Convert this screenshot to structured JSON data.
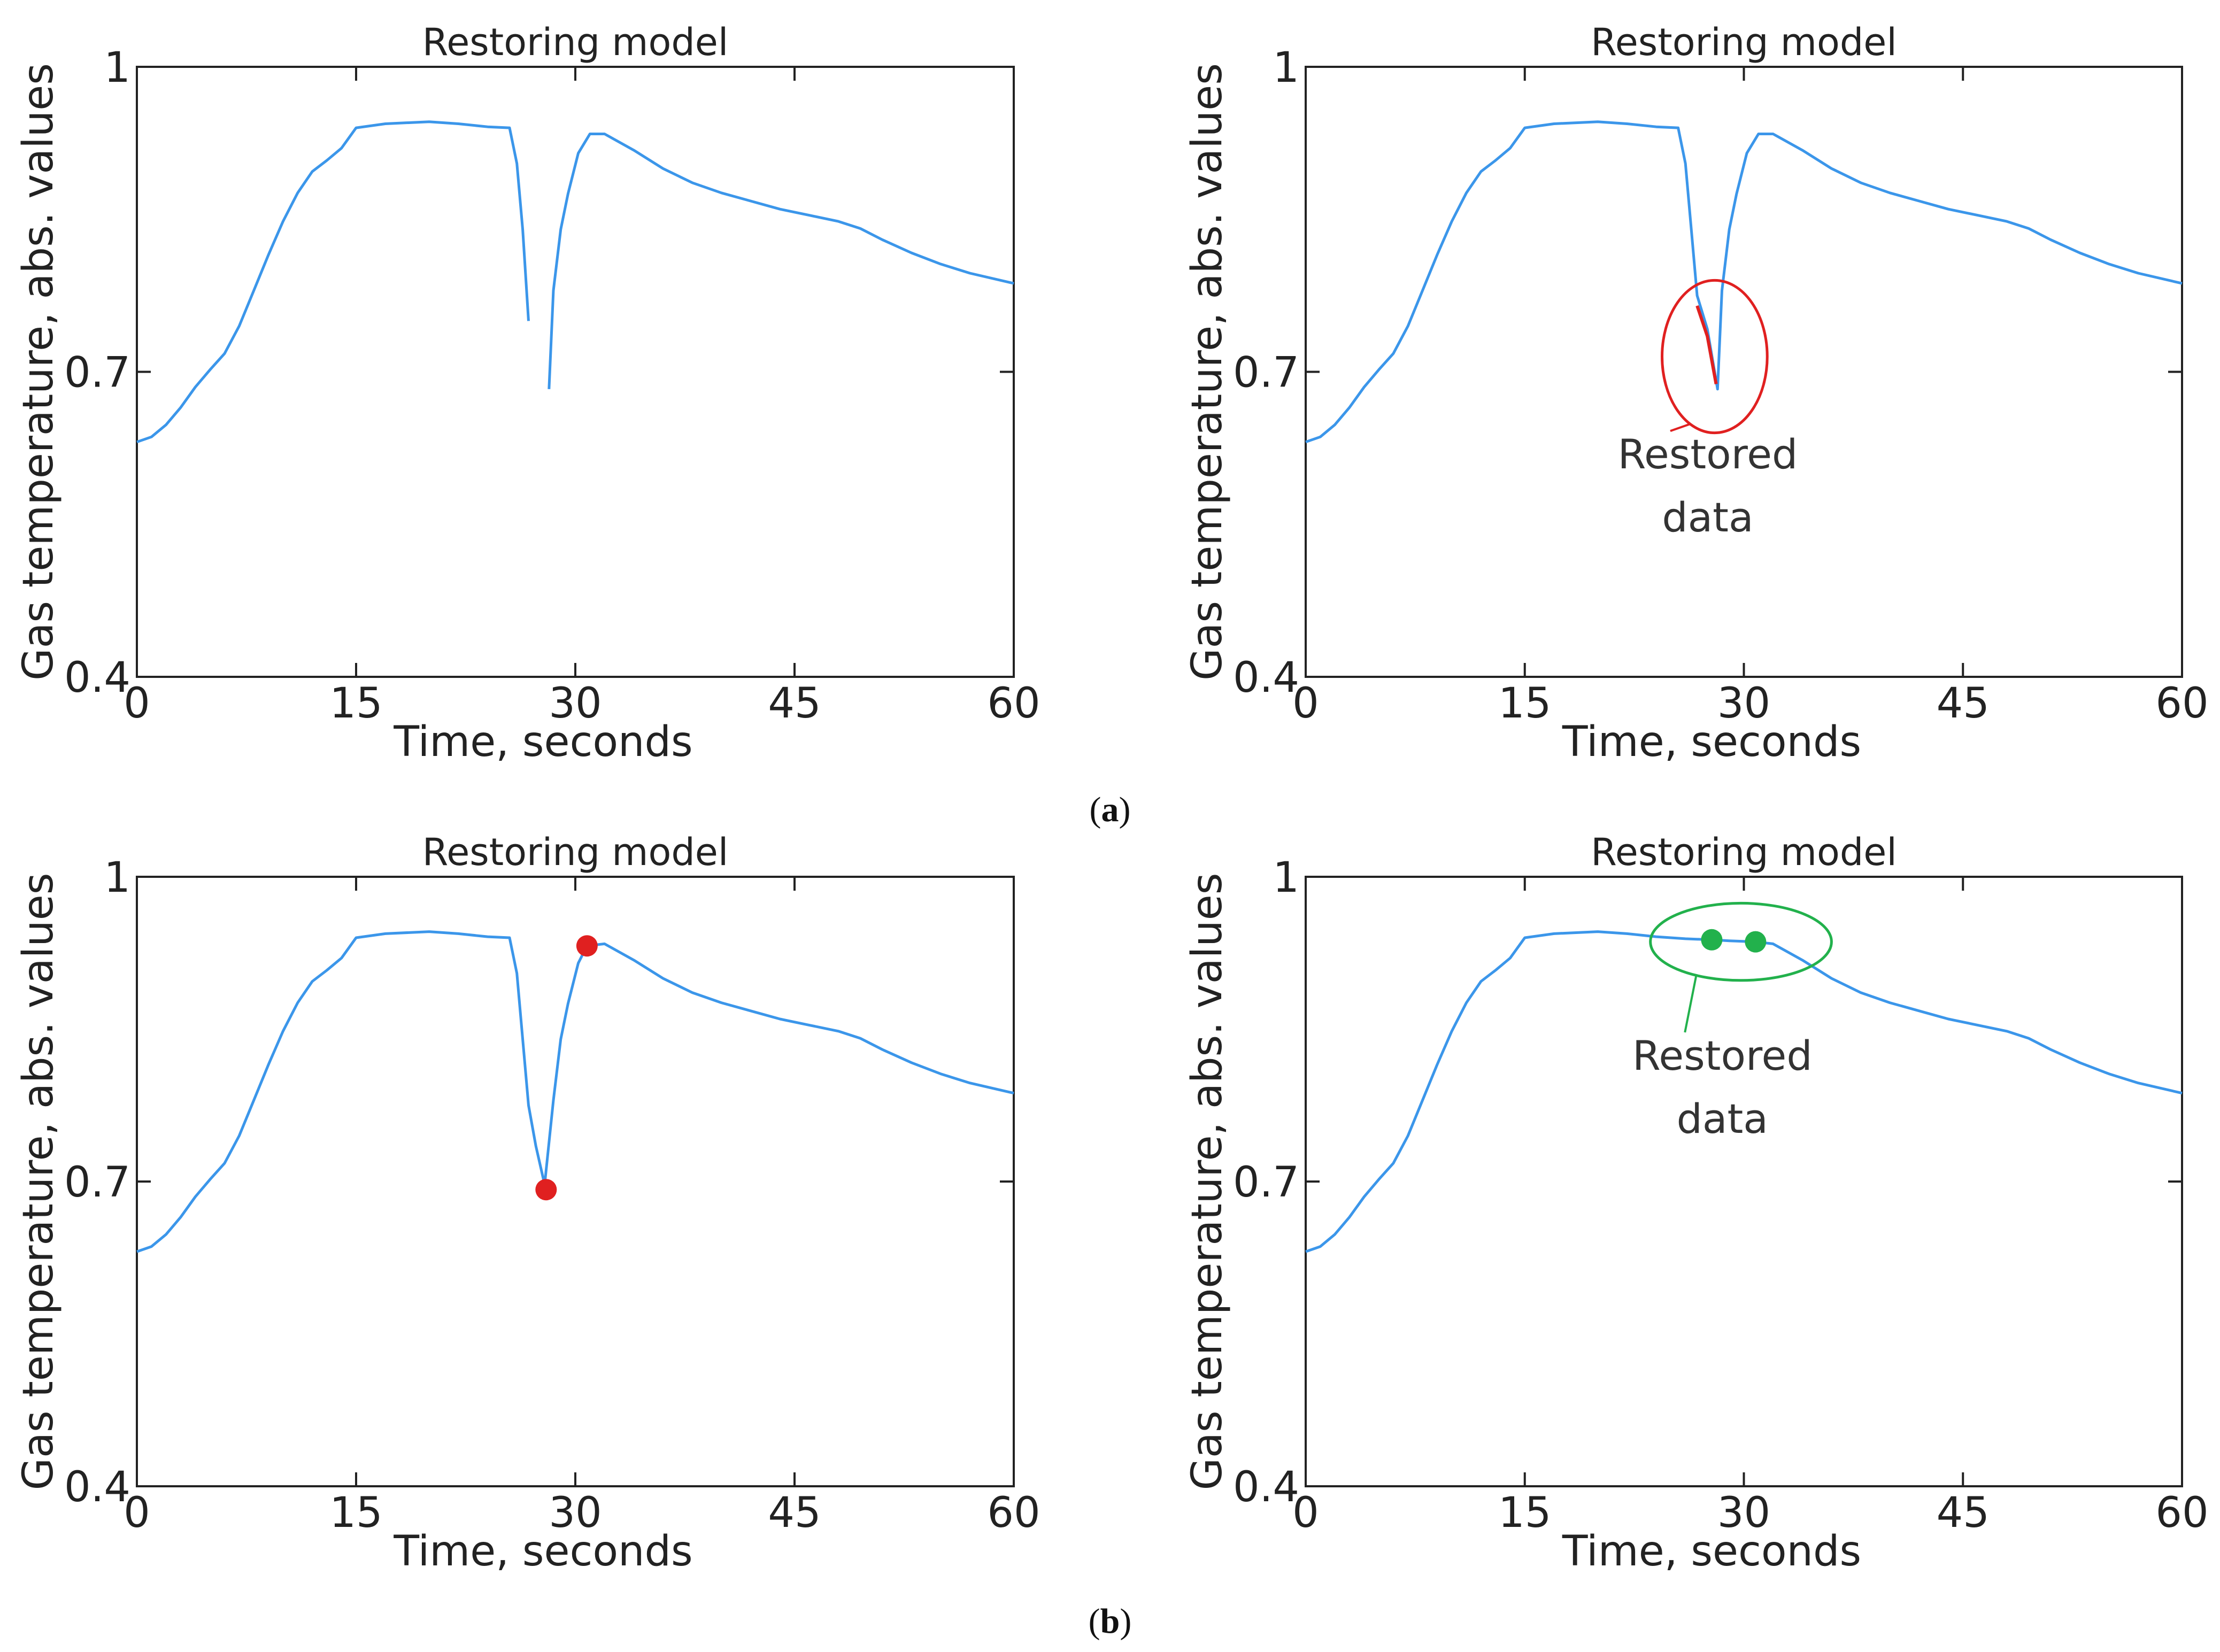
{
  "chart_data": [
    {
      "type": "line",
      "panel": "a-left",
      "title": "Restoring model",
      "xlabel": "Time, seconds",
      "ylabel": "Gas temperature, abs. values",
      "xlim": [
        0,
        60
      ],
      "ylim": [
        0.4,
        1.0
      ],
      "xticks": [
        "0",
        "15",
        "30",
        "45",
        "60"
      ],
      "yticks": [
        "0.4",
        "0.7",
        "1"
      ],
      "series": [
        {
          "name": "gas temperature",
          "color": "#3b96ea",
          "segments": [
            [
              [
                0,
                0.631
              ],
              [
                1,
                0.636
              ],
              [
                2,
                0.648
              ],
              [
                3,
                0.665
              ],
              [
                4,
                0.685
              ],
              [
                5,
                0.702
              ],
              [
                6,
                0.718
              ],
              [
                7,
                0.745
              ],
              [
                8,
                0.78
              ],
              [
                9,
                0.815
              ],
              [
                10,
                0.848
              ],
              [
                11,
                0.876
              ],
              [
                12,
                0.897
              ],
              [
                13,
                0.908
              ],
              [
                14,
                0.92
              ],
              [
                15,
                0.94
              ],
              [
                17,
                0.944
              ],
              [
                20,
                0.946
              ],
              [
                22,
                0.944
              ],
              [
                24,
                0.941
              ],
              [
                25.5,
                0.94
              ],
              [
                26,
                0.905
              ],
              [
                26.4,
                0.84
              ],
              [
                26.8,
                0.75
              ]
            ],
            [
              [
                28.2,
                0.683
              ],
              [
                28.5,
                0.78
              ],
              [
                29,
                0.84
              ],
              [
                29.5,
                0.875
              ],
              [
                30.2,
                0.915
              ],
              [
                31,
                0.934
              ],
              [
                32,
                0.934
              ],
              [
                34,
                0.918
              ],
              [
                36,
                0.9
              ],
              [
                38,
                0.886
              ],
              [
                40,
                0.876
              ],
              [
                42,
                0.868
              ],
              [
                44,
                0.86
              ],
              [
                46,
                0.854
              ],
              [
                48,
                0.848
              ],
              [
                49.5,
                0.841
              ],
              [
                51,
                0.83
              ],
              [
                53,
                0.817
              ],
              [
                55,
                0.806
              ],
              [
                57,
                0.797
              ],
              [
                60,
                0.787
              ]
            ]
          ]
        }
      ]
    },
    {
      "type": "line",
      "panel": "a-right",
      "title": "Restoring model",
      "xlabel": "Time, seconds",
      "ylabel": "Gas temperature, abs. values",
      "xlim": [
        0,
        60
      ],
      "ylim": [
        0.4,
        1.0
      ],
      "xticks": [
        "0",
        "15",
        "30",
        "45",
        "60"
      ],
      "yticks": [
        "0.4",
        "0.7",
        "1"
      ],
      "series": [
        {
          "name": "gas temperature",
          "color": "#3b96ea",
          "segments": [
            [
              [
                0,
                0.631
              ],
              [
                1,
                0.636
              ],
              [
                2,
                0.648
              ],
              [
                3,
                0.665
              ],
              [
                4,
                0.685
              ],
              [
                5,
                0.702
              ],
              [
                6,
                0.718
              ],
              [
                7,
                0.745
              ],
              [
                8,
                0.78
              ],
              [
                9,
                0.815
              ],
              [
                10,
                0.848
              ],
              [
                11,
                0.876
              ],
              [
                12,
                0.897
              ],
              [
                13,
                0.908
              ],
              [
                14,
                0.92
              ],
              [
                15,
                0.94
              ],
              [
                17,
                0.944
              ],
              [
                20,
                0.946
              ],
              [
                22,
                0.944
              ],
              [
                24,
                0.941
              ],
              [
                25.5,
                0.94
              ],
              [
                26,
                0.905
              ],
              [
                26.4,
                0.84
              ],
              [
                26.8,
                0.775
              ],
              [
                27.5,
                0.742
              ],
              [
                28.2,
                0.683
              ],
              [
                28.5,
                0.78
              ],
              [
                29,
                0.84
              ],
              [
                29.5,
                0.875
              ],
              [
                30.2,
                0.915
              ],
              [
                31,
                0.934
              ],
              [
                32,
                0.934
              ],
              [
                34,
                0.918
              ],
              [
                36,
                0.9
              ],
              [
                38,
                0.886
              ],
              [
                40,
                0.876
              ],
              [
                42,
                0.868
              ],
              [
                44,
                0.86
              ],
              [
                46,
                0.854
              ],
              [
                48,
                0.848
              ],
              [
                49.5,
                0.841
              ],
              [
                51,
                0.83
              ],
              [
                53,
                0.817
              ],
              [
                55,
                0.806
              ],
              [
                57,
                0.797
              ],
              [
                60,
                0.787
              ]
            ]
          ]
        },
        {
          "name": "restored data",
          "color": "#e02020",
          "segments": [
            [
              [
                26.8,
                0.765
              ],
              [
                27.5,
                0.735
              ],
              [
                28.1,
                0.688
              ]
            ]
          ]
        }
      ],
      "annotations": [
        {
          "shape": "circle",
          "color": "#e02020",
          "center": [
            28.0,
            0.715
          ],
          "radius_x": 3.6,
          "radius_y": 0.075,
          "text": [
            "Restored",
            "data"
          ],
          "text_at": [
            23.5,
            0.605
          ]
        }
      ]
    },
    {
      "type": "line",
      "panel": "b-left",
      "title": "Restoring model",
      "xlabel": "Time, seconds",
      "ylabel": "Gas temperature, abs. values",
      "xlim": [
        0,
        60
      ],
      "ylim": [
        0.4,
        1.0
      ],
      "xticks": [
        "0",
        "15",
        "30",
        "45",
        "60"
      ],
      "yticks": [
        "0.4",
        "0.7",
        "1"
      ],
      "series": [
        {
          "name": "gas temperature",
          "color": "#3b96ea",
          "segments": [
            [
              [
                0,
                0.631
              ],
              [
                1,
                0.636
              ],
              [
                2,
                0.648
              ],
              [
                3,
                0.665
              ],
              [
                4,
                0.685
              ],
              [
                5,
                0.702
              ],
              [
                6,
                0.718
              ],
              [
                7,
                0.745
              ],
              [
                8,
                0.78
              ],
              [
                9,
                0.815
              ],
              [
                10,
                0.848
              ],
              [
                11,
                0.876
              ],
              [
                12,
                0.897
              ],
              [
                13,
                0.908
              ],
              [
                14,
                0.92
              ],
              [
                15,
                0.94
              ],
              [
                17,
                0.944
              ],
              [
                20,
                0.946
              ],
              [
                22,
                0.944
              ],
              [
                24,
                0.941
              ],
              [
                25.5,
                0.94
              ],
              [
                26,
                0.905
              ],
              [
                26.4,
                0.84
              ],
              [
                26.8,
                0.775
              ],
              [
                27.3,
                0.735
              ],
              [
                27.9,
                0.697
              ],
              [
                28.5,
                0.78
              ],
              [
                29,
                0.84
              ],
              [
                29.5,
                0.875
              ],
              [
                30.2,
                0.915
              ],
              [
                30.8,
                0.932
              ],
              [
                32,
                0.934
              ],
              [
                34,
                0.918
              ],
              [
                36,
                0.9
              ],
              [
                38,
                0.886
              ],
              [
                40,
                0.876
              ],
              [
                42,
                0.868
              ],
              [
                44,
                0.86
              ],
              [
                46,
                0.854
              ],
              [
                48,
                0.848
              ],
              [
                49.5,
                0.841
              ],
              [
                51,
                0.83
              ],
              [
                53,
                0.817
              ],
              [
                55,
                0.806
              ],
              [
                57,
                0.797
              ],
              [
                60,
                0.787
              ]
            ]
          ]
        }
      ],
      "markers": [
        {
          "color": "#e02020",
          "points": [
            [
              28.0,
              0.692
            ],
            [
              30.8,
              0.932
            ]
          ]
        }
      ]
    },
    {
      "type": "line",
      "panel": "b-right",
      "title": "Restoring model",
      "xlabel": "Time, seconds",
      "ylabel": "Gas temperature, abs. values",
      "xlim": [
        0,
        60
      ],
      "ylim": [
        0.4,
        1.0
      ],
      "xticks": [
        "0",
        "15",
        "30",
        "45",
        "60"
      ],
      "yticks": [
        "0.4",
        "0.7",
        "1"
      ],
      "series": [
        {
          "name": "gas temperature",
          "color": "#3b96ea",
          "segments": [
            [
              [
                0,
                0.631
              ],
              [
                1,
                0.636
              ],
              [
                2,
                0.648
              ],
              [
                3,
                0.665
              ],
              [
                4,
                0.685
              ],
              [
                5,
                0.702
              ],
              [
                6,
                0.718
              ],
              [
                7,
                0.745
              ],
              [
                8,
                0.78
              ],
              [
                9,
                0.815
              ],
              [
                10,
                0.848
              ],
              [
                11,
                0.876
              ],
              [
                12,
                0.897
              ],
              [
                13,
                0.908
              ],
              [
                14,
                0.92
              ],
              [
                15,
                0.94
              ],
              [
                17,
                0.944
              ],
              [
                20,
                0.946
              ],
              [
                22,
                0.944
              ],
              [
                24,
                0.941
              ],
              [
                26,
                0.939
              ],
              [
                27.8,
                0.938
              ],
              [
                29,
                0.937
              ],
              [
                30.8,
                0.936
              ],
              [
                32,
                0.934
              ],
              [
                34,
                0.918
              ],
              [
                36,
                0.9
              ],
              [
                38,
                0.886
              ],
              [
                40,
                0.876
              ],
              [
                42,
                0.868
              ],
              [
                44,
                0.86
              ],
              [
                46,
                0.854
              ],
              [
                48,
                0.848
              ],
              [
                49.5,
                0.841
              ],
              [
                51,
                0.83
              ],
              [
                53,
                0.817
              ],
              [
                55,
                0.806
              ],
              [
                57,
                0.797
              ],
              [
                60,
                0.787
              ]
            ]
          ]
        }
      ],
      "markers": [
        {
          "color": "#22b14c",
          "points": [
            [
              27.8,
              0.938
            ],
            [
              30.8,
              0.936
            ]
          ]
        }
      ],
      "annotations": [
        {
          "shape": "ellipse",
          "color": "#22b14c",
          "center": [
            29.8,
            0.936
          ],
          "radius_x": 6.2,
          "radius_y": 0.038,
          "text": [
            "Restored",
            "data"
          ],
          "text_at": [
            24.5,
            0.81
          ]
        }
      ]
    }
  ],
  "captions": {
    "a": "a",
    "b": "b"
  }
}
